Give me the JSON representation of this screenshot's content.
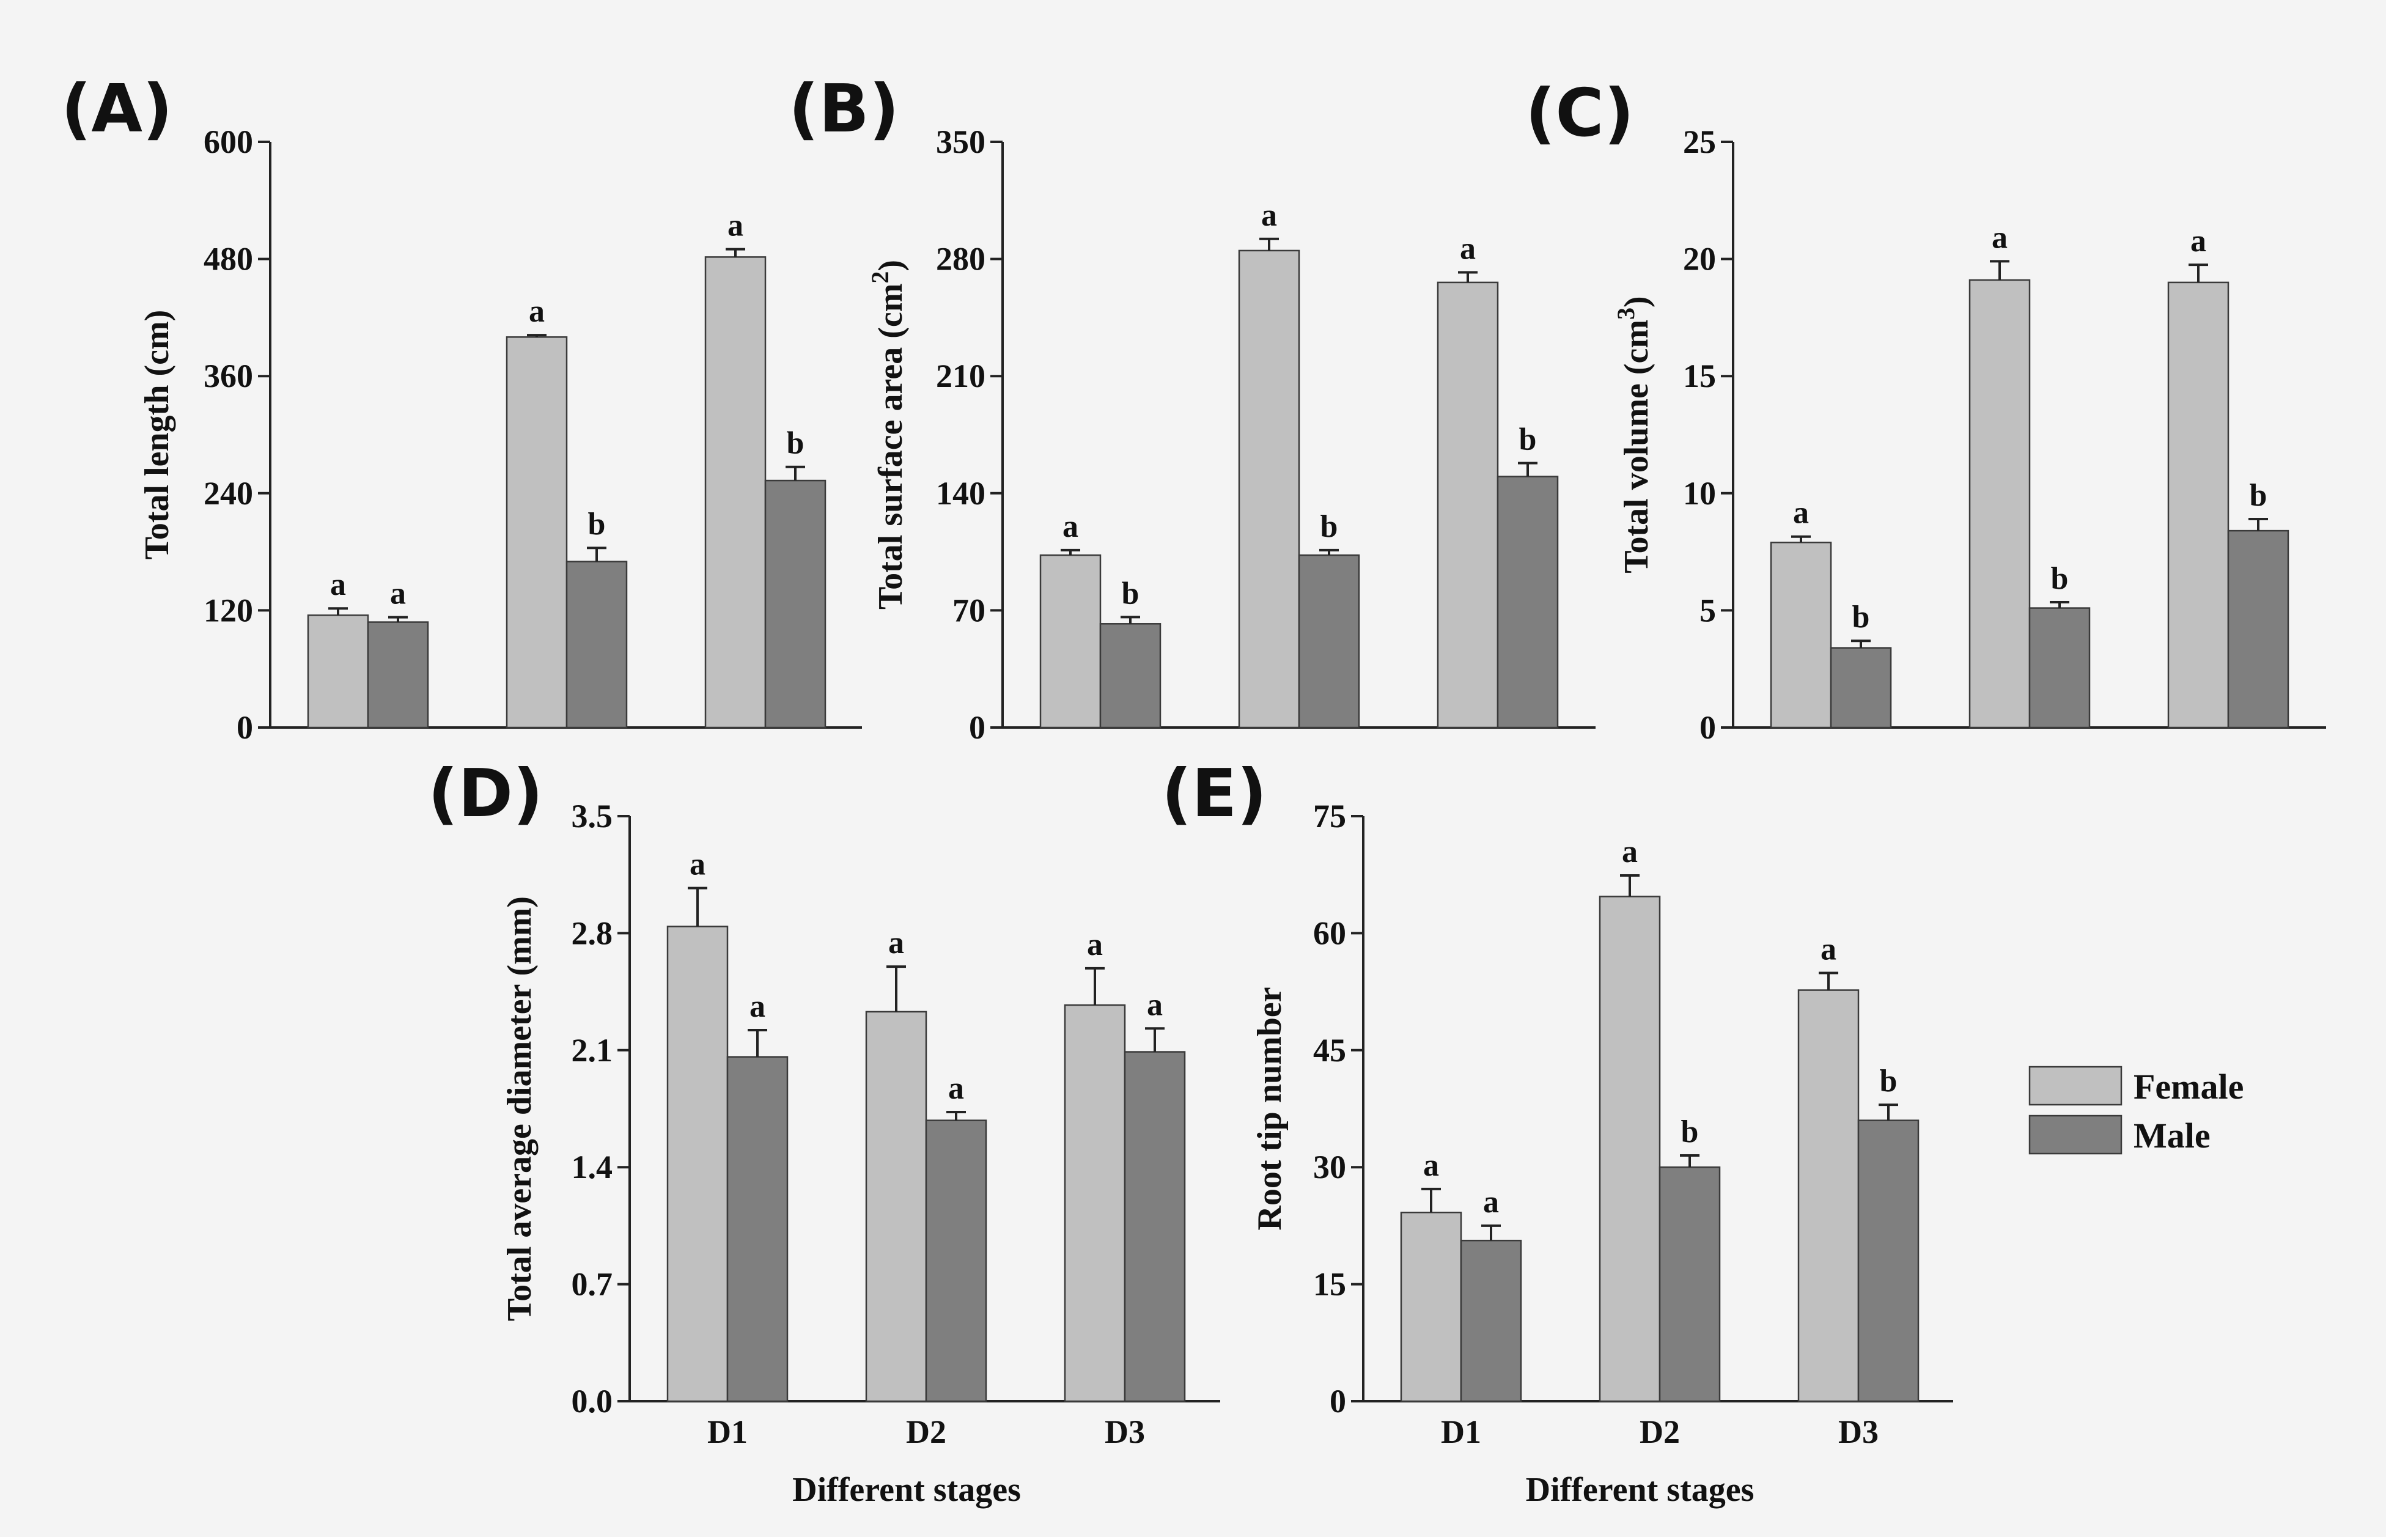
{
  "colors": {
    "female": "#c0c0c0",
    "male": "#7f7f7f",
    "axis": "#222222",
    "background": "#f4f4f4"
  },
  "legend": {
    "female_label": "Female",
    "male_label": "Male"
  },
  "chart_data": [
    {
      "panel": "(A)",
      "type": "bar",
      "categories": [
        "D1",
        "D2",
        "D3"
      ],
      "show_category_labels": false,
      "xlabel": "",
      "ylabel": "Total length (cm)",
      "ylim": [
        0,
        600
      ],
      "yticks": [
        "0",
        "120",
        "240",
        "360",
        "480",
        "600"
      ],
      "series": [
        {
          "name": "Female",
          "values": [
            115,
            400,
            482
          ],
          "errors": [
            7,
            2,
            8
          ],
          "letters": [
            "a",
            "a",
            "a"
          ]
        },
        {
          "name": "Male",
          "values": [
            108,
            170,
            253
          ],
          "errors": [
            5,
            14,
            14
          ],
          "letters": [
            "a",
            "b",
            "b"
          ]
        }
      ]
    },
    {
      "panel": "(B)",
      "type": "bar",
      "categories": [
        "D1",
        "D2",
        "D3"
      ],
      "show_category_labels": false,
      "xlabel": "",
      "ylabel": "Total surface area (cm",
      "ylabel_sup": "2",
      "ylabel_end": ")",
      "ylim": [
        0,
        350
      ],
      "yticks": [
        "0",
        "70",
        "140",
        "210",
        "280",
        "350"
      ],
      "series": [
        {
          "name": "Female",
          "values": [
            103,
            285,
            266
          ],
          "errors": [
            3,
            7,
            6
          ],
          "letters": [
            "a",
            "a",
            "a"
          ]
        },
        {
          "name": "Male",
          "values": [
            62,
            103,
            150
          ],
          "errors": [
            4,
            3,
            8
          ],
          "letters": [
            "b",
            "b",
            "b"
          ]
        }
      ]
    },
    {
      "panel": "(C)",
      "type": "bar",
      "categories": [
        "D1",
        "D2",
        "D3"
      ],
      "show_category_labels": false,
      "xlabel": "",
      "ylabel": "Total volume (cm",
      "ylabel_sup": "3",
      "ylabel_end": ")",
      "ylim": [
        0,
        25
      ],
      "yticks": [
        "0",
        "5",
        "10",
        "15",
        "20",
        "25"
      ],
      "series": [
        {
          "name": "Female",
          "values": [
            7.9,
            19.1,
            19.0
          ],
          "errors": [
            0.25,
            0.8,
            0.75
          ],
          "letters": [
            "a",
            "a",
            "a"
          ]
        },
        {
          "name": "Male",
          "values": [
            3.4,
            5.1,
            8.4
          ],
          "errors": [
            0.3,
            0.25,
            0.5
          ],
          "letters": [
            "b",
            "b",
            "b"
          ]
        }
      ]
    },
    {
      "panel": "(D)",
      "type": "bar",
      "categories": [
        "D1",
        "D2",
        "D3"
      ],
      "show_category_labels": true,
      "xlabel": "Different stages",
      "ylabel": "Total average diameter (mm)",
      "ylim": [
        0,
        3.5
      ],
      "yticks": [
        "0.0",
        "0.7",
        "1.4",
        "2.1",
        "2.8",
        "3.5"
      ],
      "series": [
        {
          "name": "Female",
          "values": [
            2.84,
            2.33,
            2.37
          ],
          "errors": [
            0.23,
            0.27,
            0.22
          ],
          "letters": [
            "a",
            "a",
            "a"
          ]
        },
        {
          "name": "Male",
          "values": [
            2.06,
            1.68,
            2.09
          ],
          "errors": [
            0.16,
            0.05,
            0.14
          ],
          "letters": [
            "a",
            "a",
            "a"
          ]
        }
      ]
    },
    {
      "panel": "(E)",
      "type": "bar",
      "categories": [
        "D1",
        "D2",
        "D3"
      ],
      "show_category_labels": true,
      "xlabel": "Different stages",
      "ylabel": "Root tip number",
      "ylim": [
        0,
        75
      ],
      "yticks": [
        "0",
        "15",
        "30",
        "45",
        "60",
        "75"
      ],
      "series": [
        {
          "name": "Female",
          "values": [
            24.2,
            64.7,
            52.7
          ],
          "errors": [
            3.0,
            2.7,
            2.2
          ],
          "letters": [
            "a",
            "a",
            "a"
          ]
        },
        {
          "name": "Male",
          "values": [
            20.6,
            30.0,
            36.0
          ],
          "errors": [
            1.9,
            1.5,
            2.0
          ],
          "letters": [
            "a",
            "b",
            "b"
          ]
        }
      ]
    }
  ]
}
